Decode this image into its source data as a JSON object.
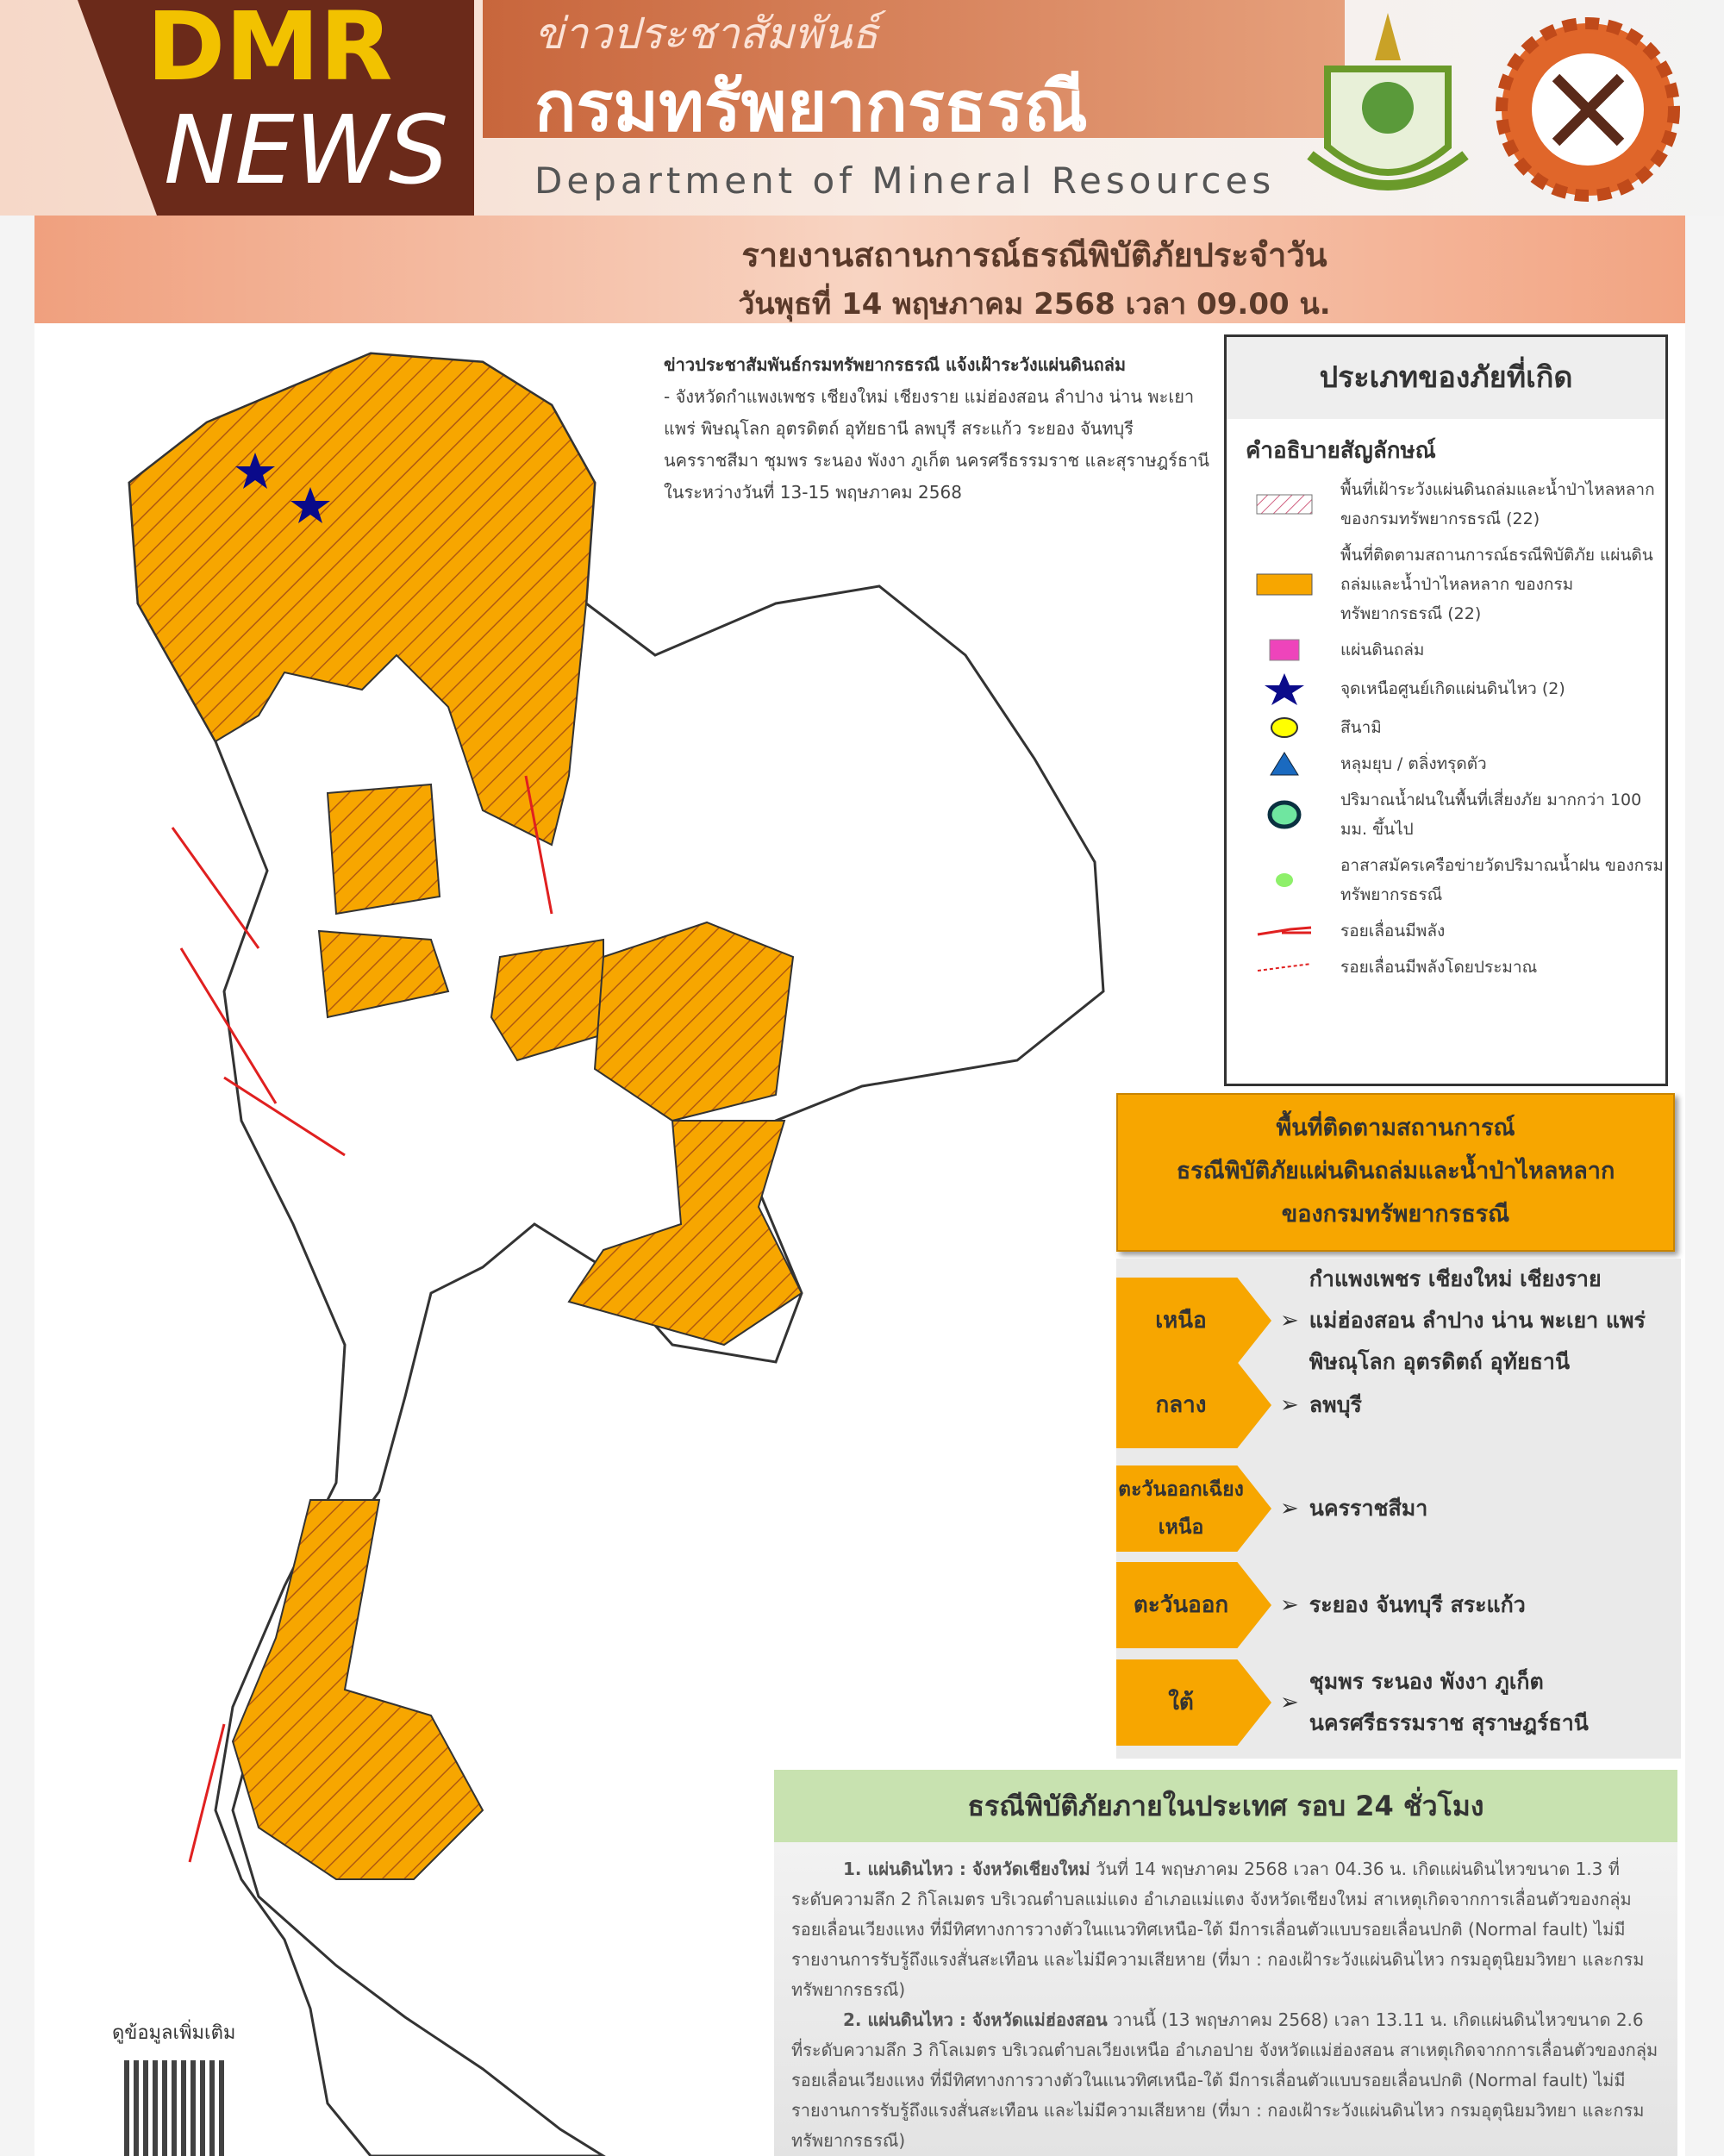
{
  "header": {
    "logo_dmr": "DMR",
    "logo_news": "NEWS",
    "subtitle_th": "ข่าวประชาสัมพันธ์",
    "title_th": "กรมทรัพยากรธรณี",
    "title_en": "Department of Mineral Resources"
  },
  "report": {
    "title": "รายงานสถานการณ์ธรณีพิบัติภัยประจำวัน",
    "date": "วันพุธที่ 14 พฤษภาคม 2568 เวลา 09.00 น."
  },
  "notice": {
    "heading": "ข่าวประชาสัมพันธ์กรมทรัพยากรธรณี แจ้งเฝ้าระวังแผ่นดินถล่ม",
    "body": "- จังหวัดกำแพงเพชร เชียงใหม่ เชียงราย แม่ฮ่องสอน ลำปาง น่าน พะเยา แพร่ พิษณุโลก อุตรดิตถ์ อุทัยธานี ลพบุรี สระแก้ว ระยอง จันทบุรี นครราชสีมา ชุมพร ระนอง พังงา ภูเก็ต นครศรีธรรมราช และสุราษฎร์ธานี ในระหว่างวันที่ 13-15 พฤษภาคม 2568"
  },
  "legend": {
    "title": "ประเภทของภัยที่เกิด",
    "subtitle": "คำอธิบายสัญลักษณ์",
    "items": [
      {
        "icon": "hatched-area-icon",
        "label": "พื้นที่เฝ้าระวังแผ่นดินถล่มและน้ำป่าไหลหลาก ของกรมทรัพยากรธรณี (22)"
      },
      {
        "icon": "orange-area-icon",
        "label": "พื้นที่ติดตามสถานการณ์ธรณีพิบัติภัย แผ่นดินถล่มและน้ำป่าไหลหลาก ของกรมทรัพยากรธรณี (22)"
      },
      {
        "icon": "magenta-square-icon",
        "label": "แผ่นดินถล่ม"
      },
      {
        "icon": "star-icon",
        "label": "จุดเหนือศูนย์เกิดแผ่นดินไหว (2)"
      },
      {
        "icon": "yellow-octagon-icon",
        "label": "สึนามิ"
      },
      {
        "icon": "triangle-icon",
        "label": "หลุมยุบ / ตลิ่งทรุดตัว"
      },
      {
        "icon": "rain-circle-icon",
        "label": "ปริมาณน้ำฝนในพื้นที่เสี่ยงภัย มากกว่า 100 มม. ขึ้นไป"
      },
      {
        "icon": "green-dot-icon",
        "label": "อาสาสมัครเครือข่ายวัดปริมาณน้ำฝน ของกรมทรัพยากรธรณี"
      },
      {
        "icon": "fault-line-icon",
        "label": "รอยเลื่อนมีพลัง"
      },
      {
        "icon": "dashed-fault-line-icon",
        "label": "รอยเลื่อนมีพลังโดยประมาณ"
      }
    ]
  },
  "banner": {
    "line1": "พื้นที่ติดตามสถานการณ์",
    "line2": "ธรณีพิบัติภัยแผ่นดินถล่มและน้ำป่าไหลหลาก",
    "line3": "ของกรมทรัพยากรธรณี"
  },
  "regions": [
    {
      "name": "เหนือ",
      "provinces": "กำแพงเพชร เชียงใหม่ เชียงราย แม่ฮ่องสอน ลำปาง น่าน พะเยา แพร่ พิษณุโลก อุตรดิตถ์ อุทัยธานี"
    },
    {
      "name": "กลาง",
      "provinces": "ลพบุรี"
    },
    {
      "name": "ตะวันออกเฉียงเหนือ",
      "provinces": "นครราชสีมา"
    },
    {
      "name": "ตะวันออก",
      "provinces": "ระยอง จันทบุรี สระแก้ว"
    },
    {
      "name": "ใต้",
      "provinces": "ชุมพร ระนอง พังงา ภูเก็ต นครศรีธรรมราช สุราษฎร์ธานี"
    }
  ],
  "daily": {
    "title": "ธรณีพิบัติภัยภายในประเทศ รอบ 24 ชั่วโมง",
    "items": [
      {
        "head": "1. แผ่นดินไหว : จังหวัดเชียงใหม่",
        "body": " วันที่ 14 พฤษภาคม 2568 เวลา 04.36 น. เกิดแผ่นดินไหวขนาด 1.3 ที่ระดับความลึก 2 กิโลเมตร บริเวณตำบลแม่แดง อำเภอแม่แตง จังหวัดเชียงใหม่ สาเหตุเกิดจากการเลื่อนตัวของกลุ่มรอยเลื่อนเวียงแหง ที่มีทิศทางการวางตัวในแนวทิศเหนือ-ใต้ มีการเลื่อนตัวแบบรอยเลื่อนปกติ (Normal fault) ไม่มีรายงานการรับรู้ถึงแรงสั่นสะเทือน และไม่มีความเสียหาย (ที่มา : กองเฝ้าระวังแผ่นดินไหว กรมอุตุนิยมวิทยา และกรมทรัพยากรธรณี)"
      },
      {
        "head": "2. แผ่นดินไหว : จังหวัดแม่ฮ่องสอน",
        "body": " วานนี้ (13 พฤษภาคม 2568) เวลา 13.11 น. เกิดแผ่นดินไหวขนาด 2.6 ที่ระดับความลึก 3 กิโลเมตร บริเวณตำบลเวียงเหนือ อำเภอปาย จังหวัดแม่ฮ่องสอน สาเหตุเกิดจากการเลื่อนตัวของกลุ่มรอยเลื่อนเวียงแหง ที่มีทิศทางการวางตัวในแนวทิศเหนือ-ใต้ มีการเลื่อนตัวแบบรอยเลื่อนปกติ (Normal fault) ไม่มีรายงานการรับรู้ถึงแรงสั่นสะเทือน และไม่มีความเสียหาย (ที่มา : กองเฝ้าระวังแผ่นดินไหว กรมอุตุนิยมวิทยา และกรมทรัพยากรธรณี)"
      }
    ]
  },
  "more_info": "ดูข้อมูลเพิ่มเติม",
  "colors": {
    "orange": "#f7a600",
    "header_brown": "#6b2a1a",
    "dmr_yellow": "#f2c200",
    "green_header": "#c8e2b0",
    "star": "#0a0a8a"
  }
}
